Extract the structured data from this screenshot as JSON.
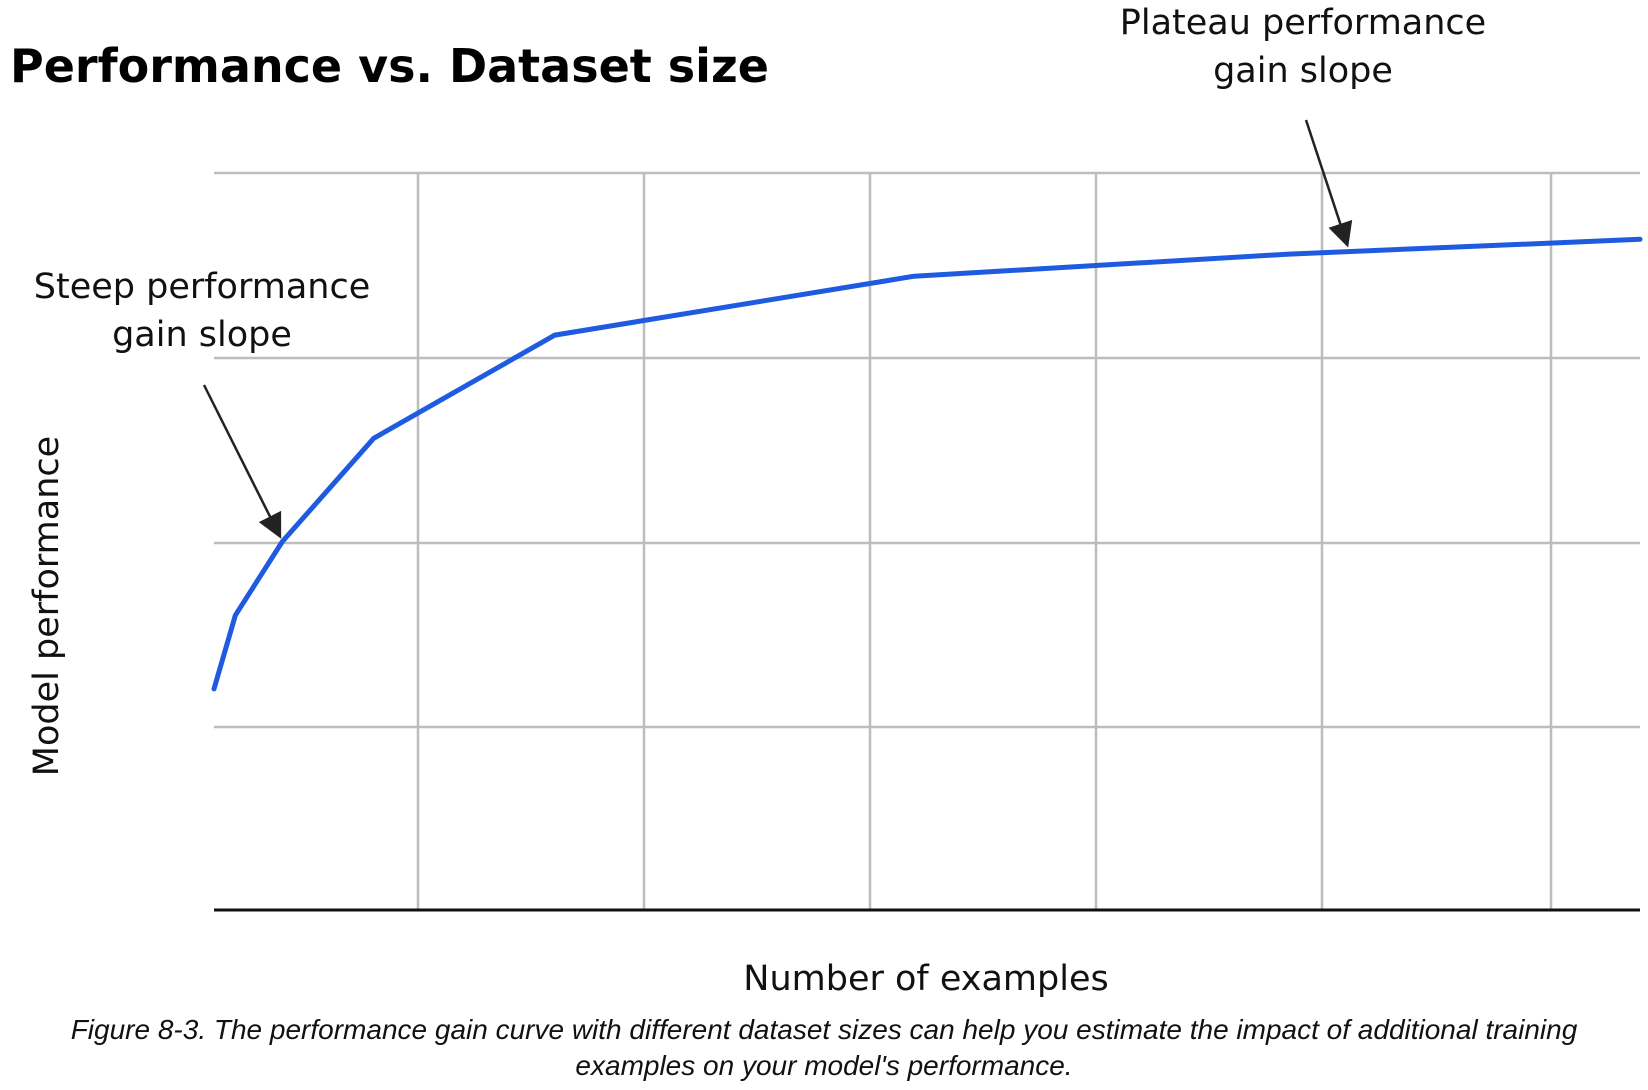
{
  "chart_data": {
    "type": "line",
    "title": "Performance vs. Dataset size",
    "xlabel": "Number of examples",
    "ylabel": "Model performance",
    "xlim": [
      0,
      100
    ],
    "ylim": [
      0,
      100
    ],
    "grid": true,
    "series": [
      {
        "color": "#1f5be0",
        "x": [
          0,
          1.5,
          4.8,
          11.2,
          23.9,
          49.1,
          75.4,
          100
        ],
        "y": [
          30,
          40,
          50,
          64,
          78,
          86,
          89,
          91
        ]
      }
    ],
    "annotations": [
      {
        "text": "Steep performance gain slope",
        "lines": [
          "Steep performance",
          "gain slope"
        ],
        "x": 4.8,
        "y": 50
      },
      {
        "text": "Plateau performance gain slope",
        "lines": [
          "Plateau performance",
          "gain slope"
        ],
        "x": 79.6,
        "y": 89.5
      }
    ]
  },
  "caption": "Figure 8-3. The performance gain curve with different dataset sizes can help you estimate the impact of additional training examples on your model's performance."
}
